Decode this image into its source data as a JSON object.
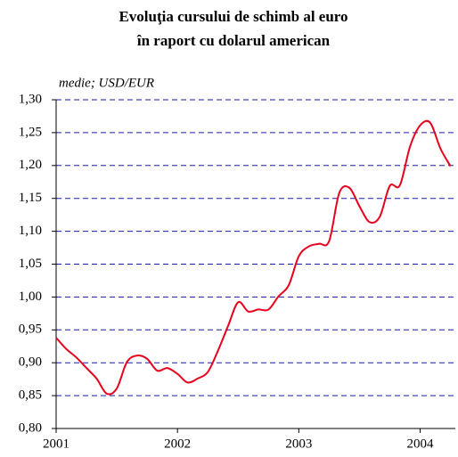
{
  "chart_data": {
    "type": "line",
    "title": [
      "Evoluţia cursului de schimb al euro",
      "în raport cu dolarul american"
    ],
    "subtitle": "medie; USD/EUR",
    "x": [
      2001,
      2001.083,
      2001.167,
      2001.25,
      2001.333,
      2001.417,
      2001.5,
      2001.583,
      2001.667,
      2001.75,
      2001.833,
      2001.917,
      2002,
      2002.083,
      2002.167,
      2002.25,
      2002.333,
      2002.417,
      2002.5,
      2002.583,
      2002.667,
      2002.75,
      2002.833,
      2002.917,
      2003,
      2003.083,
      2003.167,
      2003.25,
      2003.333,
      2003.417,
      2003.5,
      2003.583,
      2003.667,
      2003.75,
      2003.833,
      2003.917,
      2004,
      2004.083,
      2004.167,
      2004.25
    ],
    "series": [
      {
        "name": "USD/EUR",
        "color": "#e8001c",
        "values": [
          0.938,
          0.921,
          0.908,
          0.892,
          0.876,
          0.853,
          0.861,
          0.901,
          0.911,
          0.906,
          0.888,
          0.892,
          0.883,
          0.87,
          0.876,
          0.886,
          0.918,
          0.956,
          0.992,
          0.978,
          0.981,
          0.981,
          1.001,
          1.018,
          1.062,
          1.077,
          1.081,
          1.085,
          1.158,
          1.166,
          1.138,
          1.114,
          1.122,
          1.169,
          1.17,
          1.229,
          1.261,
          1.265,
          1.226,
          1.199
        ]
      }
    ],
    "xlim": [
      2001,
      2004.29
    ],
    "xticks": [
      2001,
      2002,
      2003,
      2004
    ],
    "ylim": [
      0.8,
      1.3
    ],
    "yticks": [
      {
        "value": 0.8,
        "label": "0,80"
      },
      {
        "value": 0.85,
        "label": "0,85"
      },
      {
        "value": 0.9,
        "label": "0,90"
      },
      {
        "value": 0.95,
        "label": "0,95"
      },
      {
        "value": 1.0,
        "label": "1,00"
      },
      {
        "value": 1.05,
        "label": "1,05"
      },
      {
        "value": 1.1,
        "label": "1,10"
      },
      {
        "value": 1.15,
        "label": "1,15"
      },
      {
        "value": 1.2,
        "label": "1,20"
      },
      {
        "value": 1.25,
        "label": "1,25"
      },
      {
        "value": 1.3,
        "label": "1,30"
      }
    ],
    "grid": true,
    "grid_color": "#1a1aa8"
  }
}
